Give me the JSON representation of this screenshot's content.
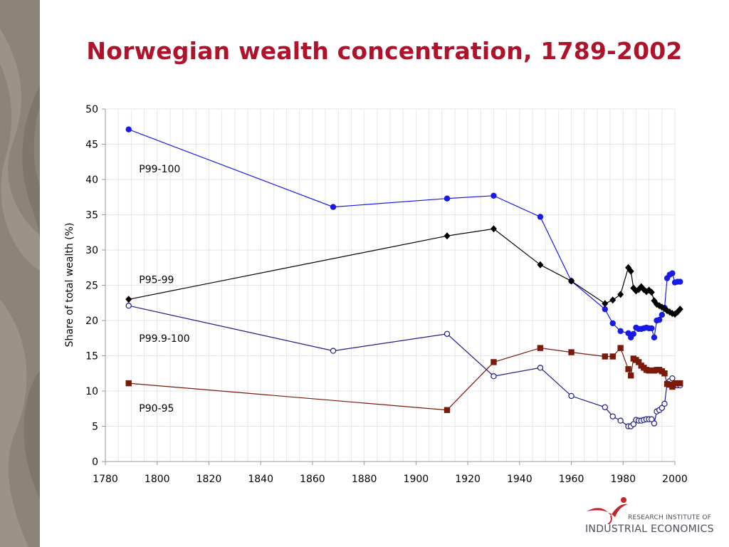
{
  "slide": {
    "title": "Norwegian wealth concentration, 1789-2002",
    "colors": {
      "sidebar": "#8c8478",
      "title": "#b0122b",
      "logo_red": "#c0262e",
      "logo_text": "#4a4f58"
    }
  },
  "logo": {
    "line1": "RESEARCH INSTITUTE OF",
    "line2": "INDUSTRIAL ECONOMICS",
    "icon": "sprout-logo-icon"
  },
  "chart_data": {
    "type": "line",
    "title": "",
    "xlabel": "",
    "ylabel": "Share of total wealth (%)",
    "xlim": [
      1780,
      2000
    ],
    "ylim": [
      0,
      50
    ],
    "xticks": [
      1780,
      1800,
      1820,
      1840,
      1860,
      1880,
      1900,
      1920,
      1940,
      1960,
      1980,
      2000
    ],
    "yticks": [
      0,
      5,
      10,
      15,
      20,
      25,
      30,
      35,
      40,
      45,
      50
    ],
    "grid": true,
    "legend": "inline labels",
    "series": [
      {
        "name": "P99-100",
        "color": "#1a1ae6",
        "marker": "filled-circle",
        "label_anchor": [
          1793,
          41.5
        ],
        "x": [
          1789,
          1868,
          1912,
          1930,
          1948,
          1960,
          1973,
          1976,
          1979,
          1982,
          1983,
          1984,
          1985,
          1986,
          1987,
          1988,
          1989,
          1990,
          1991,
          1992,
          1993,
          1994,
          1995,
          1996,
          1997,
          1998,
          1999,
          2000,
          2001,
          2002
        ],
        "y": [
          47.1,
          36.1,
          37.3,
          37.7,
          34.7,
          25.6,
          21.6,
          19.6,
          18.5,
          18.2,
          17.6,
          18.1,
          19.0,
          18.8,
          18.8,
          18.9,
          19.0,
          18.9,
          18.9,
          17.6,
          20.0,
          20.1,
          20.8,
          21.8,
          26.0,
          26.5,
          26.7,
          25.4,
          25.5,
          25.5
        ]
      },
      {
        "name": "P95-99",
        "color": "#000000",
        "marker": "filled-diamond",
        "label_anchor": [
          1793,
          25.8
        ],
        "x": [
          1789,
          1912,
          1930,
          1948,
          1960,
          1973,
          1976,
          1979,
          1982,
          1983,
          1984,
          1985,
          1986,
          1987,
          1988,
          1989,
          1990,
          1991,
          1992,
          1993,
          1994,
          1995,
          1996,
          1997,
          1998,
          1999,
          2000,
          2001,
          2002
        ],
        "y": [
          23.0,
          32.0,
          33.0,
          27.9,
          25.6,
          22.4,
          22.9,
          23.7,
          27.5,
          27.0,
          24.6,
          24.2,
          24.4,
          24.8,
          24.4,
          24.1,
          24.3,
          24.0,
          22.8,
          22.3,
          22.1,
          21.9,
          21.7,
          21.4,
          21.2,
          21.0,
          20.9,
          21.2,
          21.6
        ]
      },
      {
        "name": "P99.9-100",
        "color": "#1c1c8c",
        "marker": "open-circle",
        "label_anchor": [
          1793,
          17.5
        ],
        "x": [
          1789,
          1868,
          1912,
          1930,
          1948,
          1960,
          1973,
          1976,
          1979,
          1982,
          1983,
          1984,
          1985,
          1986,
          1987,
          1988,
          1989,
          1990,
          1991,
          1992,
          1993,
          1994,
          1995,
          1996,
          1997,
          1998,
          1999,
          2000,
          2001,
          2002
        ],
        "y": [
          22.1,
          15.7,
          18.1,
          12.1,
          13.3,
          9.3,
          7.7,
          6.4,
          5.8,
          5.0,
          5.0,
          5.3,
          5.9,
          5.8,
          5.8,
          5.9,
          6.0,
          6.0,
          6.0,
          5.4,
          7.1,
          7.3,
          7.6,
          8.2,
          11.1,
          11.4,
          11.8,
          10.8,
          10.8,
          10.8
        ]
      },
      {
        "name": "P90-95",
        "color": "#7a1a0a",
        "marker": "filled-square",
        "label_anchor": [
          1793,
          7.6
        ],
        "x": [
          1789,
          1912,
          1930,
          1948,
          1960,
          1973,
          1976,
          1979,
          1982,
          1983,
          1984,
          1985,
          1986,
          1987,
          1988,
          1989,
          1990,
          1991,
          1992,
          1993,
          1994,
          1995,
          1996,
          1997,
          1998,
          1999,
          2000,
          2001,
          2002
        ],
        "y": [
          11.1,
          7.3,
          14.1,
          16.1,
          15.5,
          14.9,
          14.9,
          16.1,
          13.1,
          12.2,
          14.6,
          14.4,
          14.1,
          13.6,
          13.3,
          13.0,
          12.9,
          12.9,
          12.9,
          13.0,
          13.0,
          12.8,
          12.5,
          11.0,
          10.9,
          10.6,
          11.1,
          11.1,
          11.1
        ]
      }
    ]
  }
}
